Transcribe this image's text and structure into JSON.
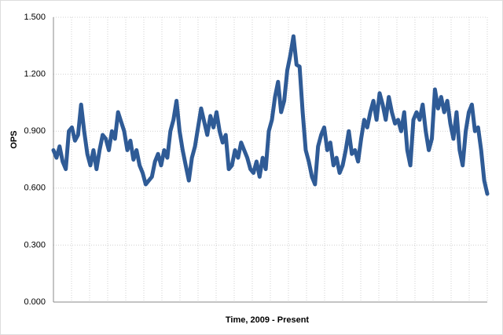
{
  "chart_data": {
    "type": "line",
    "x_label": "Time, 2009 - Present",
    "y_label": "OPS",
    "series": [
      {
        "color": "#2f5b96",
        "values": [
          0.8,
          0.76,
          0.82,
          0.74,
          0.7,
          0.9,
          0.92,
          0.85,
          0.88,
          1.04,
          0.9,
          0.78,
          0.72,
          0.8,
          0.7,
          0.8,
          0.88,
          0.86,
          0.8,
          0.9,
          0.86,
          1.0,
          0.95,
          0.9,
          0.8,
          0.85,
          0.75,
          0.8,
          0.72,
          0.68,
          0.62,
          0.64,
          0.66,
          0.74,
          0.78,
          0.72,
          0.8,
          0.76,
          0.9,
          0.96,
          1.06,
          0.9,
          0.8,
          0.72,
          0.64,
          0.76,
          0.82,
          0.92,
          1.02,
          0.95,
          0.88,
          0.98,
          0.92,
          1.0,
          0.9,
          0.84,
          0.88,
          0.7,
          0.72,
          0.8,
          0.76,
          0.84,
          0.8,
          0.76,
          0.7,
          0.68,
          0.74,
          0.66,
          0.76,
          0.7,
          0.9,
          0.96,
          1.08,
          1.16,
          1.0,
          1.06,
          1.22,
          1.3,
          1.4,
          1.25,
          1.24,
          1.0,
          0.8,
          0.74,
          0.66,
          0.62,
          0.82,
          0.88,
          0.92,
          0.8,
          0.84,
          0.72,
          0.76,
          0.68,
          0.72,
          0.8,
          0.9,
          0.78,
          0.8,
          0.74,
          0.86,
          0.96,
          0.92,
          1.0,
          1.06,
          0.96,
          1.1,
          1.04,
          0.96,
          1.08,
          1.0,
          0.94,
          0.96,
          0.9,
          1.0,
          0.8,
          0.72,
          0.96,
          1.0,
          0.96,
          1.04,
          0.9,
          0.8,
          0.86,
          1.12,
          1.02,
          1.08,
          1.0,
          1.06,
          0.94,
          0.86,
          1.0,
          0.8,
          0.72,
          0.9,
          1.0,
          1.04,
          0.9,
          0.92,
          0.8,
          0.64,
          0.57
        ]
      }
    ],
    "ylim": [
      0,
      1.5
    ],
    "yticks": [
      {
        "value": 0,
        "label": "0.000"
      },
      {
        "value": 0.3,
        "label": "0.300"
      },
      {
        "value": 0.6,
        "label": "0.600"
      },
      {
        "value": 0.9,
        "label": "0.900"
      },
      {
        "value": 1.2,
        "label": "1.200"
      },
      {
        "value": 1.5,
        "label": "1.500"
      }
    ],
    "grid": true
  }
}
